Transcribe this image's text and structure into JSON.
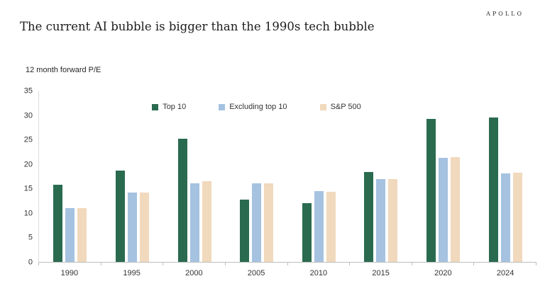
{
  "brand": "APOLLO",
  "title": "The current AI bubble is bigger than the 1990s tech bubble",
  "chart_data": {
    "type": "bar",
    "title": "The current AI bubble is bigger than the 1990s tech bubble",
    "ylabel": "12 month forward P/E",
    "xlabel": "",
    "ylim": [
      0,
      35
    ],
    "yticks": [
      0,
      5,
      10,
      15,
      20,
      25,
      30,
      35
    ],
    "grid": false,
    "legend_position": "top-center",
    "categories": [
      "1990",
      "1995",
      "2000",
      "2005",
      "2010",
      "2015",
      "2020",
      "2024"
    ],
    "series": [
      {
        "name": "Top 10",
        "color": "#2a6b50",
        "values": [
          15.8,
          18.8,
          25.2,
          12.8,
          12.0,
          18.5,
          29.3,
          29.7
        ]
      },
      {
        "name": "Excluding top 10",
        "color": "#a5c2e0",
        "values": [
          11.0,
          14.2,
          16.1,
          16.1,
          14.5,
          17.0,
          21.3,
          18.2
        ]
      },
      {
        "name": "S&P 500",
        "color": "#f1d9bd",
        "values": [
          11.0,
          14.3,
          16.5,
          16.1,
          14.4,
          17.0,
          21.5,
          18.3
        ]
      }
    ]
  }
}
